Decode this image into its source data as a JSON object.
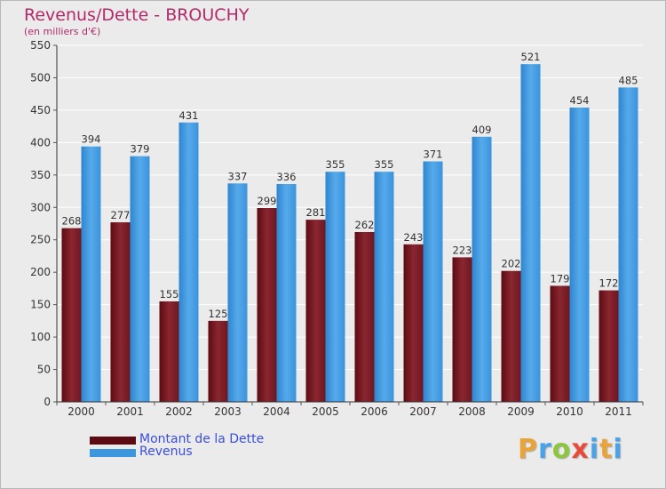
{
  "header": {
    "title": "Revenus/Dette - BROUCHY",
    "subtitle": "(en milliers d'€)"
  },
  "colors": {
    "debt": "#7a1e25",
    "revenue": "#4aa3e6",
    "title": "#b3296b",
    "legend_text": "#3b4fd8",
    "background": "#ebebeb"
  },
  "legend": [
    {
      "label": "Montant de la Dette",
      "color": "#5c0b12"
    },
    {
      "label": "Revenus",
      "color": "#3d97df"
    }
  ],
  "logo": {
    "letters": [
      "P",
      "r",
      "o",
      "x",
      "i",
      "t",
      "i"
    ],
    "colors": [
      "#e8a33a",
      "#4aa3e6",
      "#8cc63f",
      "#e84b3a",
      "#4aa3e6",
      "#e8a33a",
      "#4aa3e6"
    ]
  },
  "chart_data": {
    "type": "bar",
    "categories": [
      "2000",
      "2001",
      "2002",
      "2003",
      "2004",
      "2005",
      "2006",
      "2007",
      "2008",
      "2009",
      "2010",
      "2011"
    ],
    "series": [
      {
        "name": "Montant de la Dette",
        "values": [
          268,
          277,
          155,
          125,
          299,
          281,
          262,
          243,
          223,
          202,
          179,
          172
        ]
      },
      {
        "name": "Revenus",
        "values": [
          394,
          379,
          431,
          337,
          336,
          355,
          355,
          371,
          409,
          521,
          454,
          485
        ]
      }
    ],
    "title": "Revenus/Dette - BROUCHY",
    "subtitle": "(en milliers d'€)",
    "ylim": [
      0,
      550
    ],
    "yticks": [
      0,
      50,
      100,
      150,
      200,
      250,
      300,
      350,
      400,
      450,
      500,
      550
    ],
    "grid": true,
    "legend_position": "bottom-left"
  }
}
